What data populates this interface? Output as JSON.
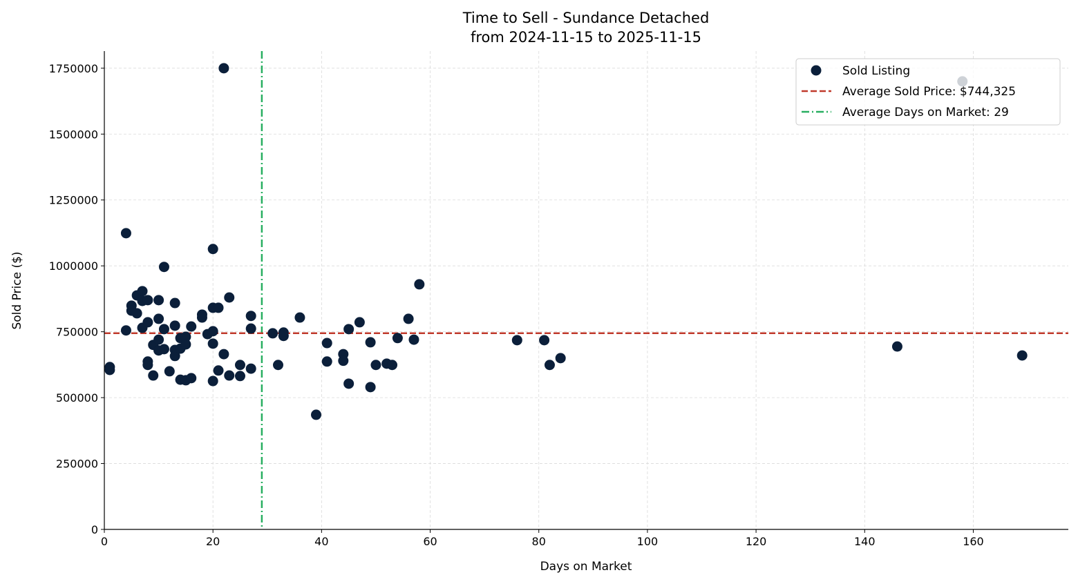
{
  "chart_data": {
    "type": "scatter",
    "title": "Time to Sell - Sundance Detached",
    "subtitle": "from 2024-11-15 to 2025-11-15",
    "xlabel": "Days on Market",
    "ylabel": "Sold Price ($)",
    "xlim": [
      0,
      177.5
    ],
    "ylim": [
      0,
      1815000
    ],
    "xticks": [
      0,
      20,
      40,
      60,
      80,
      100,
      120,
      140,
      160
    ],
    "yticks": [
      0,
      250000,
      500000,
      750000,
      1000000,
      1250000,
      1500000,
      1750000
    ],
    "grid": true,
    "legend_position": "top-right",
    "colors": {
      "points": "#0b1f3a",
      "avg_price": "#c0392b",
      "avg_days": "#27ae60"
    },
    "legend": {
      "points": "Sold Listing",
      "avg_price": "Average Sold Price: $744,325",
      "avg_days": "Average Days on Market: 29"
    },
    "avg_price": 744325,
    "avg_days": 29,
    "points": [
      [
        1,
        616000
      ],
      [
        1,
        605000
      ],
      [
        4,
        1124000
      ],
      [
        4,
        755000
      ],
      [
        5,
        849000
      ],
      [
        5,
        830000
      ],
      [
        6,
        888000
      ],
      [
        6,
        820000
      ],
      [
        7,
        904000
      ],
      [
        7,
        867000
      ],
      [
        7,
        765000
      ],
      [
        8,
        870000
      ],
      [
        8,
        786000
      ],
      [
        8,
        637000
      ],
      [
        8,
        624000
      ],
      [
        9,
        700000
      ],
      [
        9,
        584000
      ],
      [
        10,
        870000
      ],
      [
        10,
        799000
      ],
      [
        10,
        720000
      ],
      [
        10,
        679000
      ],
      [
        11,
        996000
      ],
      [
        11,
        760000
      ],
      [
        11,
        684000
      ],
      [
        12,
        600000
      ],
      [
        13,
        859000
      ],
      [
        13,
        773000
      ],
      [
        13,
        681000
      ],
      [
        13,
        658000
      ],
      [
        14,
        726000
      ],
      [
        14,
        686000
      ],
      [
        14,
        568000
      ],
      [
        15,
        731000
      ],
      [
        15,
        702000
      ],
      [
        15,
        566000
      ],
      [
        16,
        770000
      ],
      [
        16,
        574000
      ],
      [
        18,
        815000
      ],
      [
        18,
        804000
      ],
      [
        19,
        741000
      ],
      [
        20,
        1064000
      ],
      [
        20,
        841000
      ],
      [
        20,
        752000
      ],
      [
        20,
        705000
      ],
      [
        20,
        563000
      ],
      [
        21,
        841000
      ],
      [
        21,
        603000
      ],
      [
        22,
        1750000
      ],
      [
        22,
        665000
      ],
      [
        23,
        880000
      ],
      [
        23,
        584000
      ],
      [
        25,
        624000
      ],
      [
        25,
        582000
      ],
      [
        27,
        810000
      ],
      [
        27,
        762000
      ],
      [
        27,
        610000
      ],
      [
        31,
        744000
      ],
      [
        32,
        624000
      ],
      [
        33,
        747000
      ],
      [
        33,
        734000
      ],
      [
        36,
        804000
      ],
      [
        39,
        435000
      ],
      [
        41,
        707000
      ],
      [
        41,
        637000
      ],
      [
        44,
        665000
      ],
      [
        44,
        640000
      ],
      [
        45,
        760000
      ],
      [
        45,
        553000
      ],
      [
        47,
        786000
      ],
      [
        49,
        710000
      ],
      [
        49,
        540000
      ],
      [
        50,
        624000
      ],
      [
        52,
        629000
      ],
      [
        53,
        624000
      ],
      [
        54,
        726000
      ],
      [
        56,
        799000
      ],
      [
        57,
        720000
      ],
      [
        58,
        930000
      ],
      [
        76,
        718000
      ],
      [
        81,
        718000
      ],
      [
        82,
        624000
      ],
      [
        84,
        650000
      ],
      [
        146,
        694000
      ],
      [
        158,
        1700000
      ],
      [
        169,
        660000
      ]
    ]
  }
}
